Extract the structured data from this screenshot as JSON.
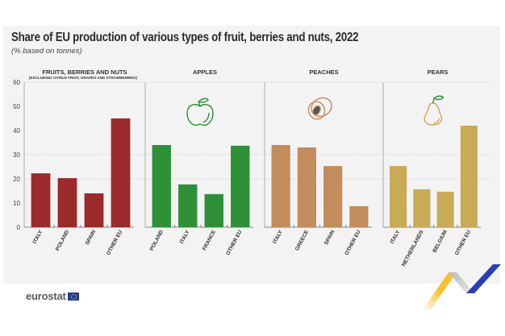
{
  "header": {
    "title": "Share of EU production of various types of fruit, berries and nuts, 2022",
    "subtitle": "(% based on tonnes)"
  },
  "footer": {
    "logo_text": "eurostat"
  },
  "chart_data": [
    {
      "type": "bar",
      "title": "FRUITS, BERRIES AND NUTS",
      "subtitle": "(EXCLUDING CITRUS FRUIT, GRAPES AND STRAWBERRIES)",
      "icon": "none",
      "color": "#9b2a2a",
      "categories": [
        "ITALY",
        "POLAND",
        "SPAIN",
        "OTHER EU"
      ],
      "values": [
        22.3,
        20.3,
        14.0,
        45.0
      ],
      "ylim": [
        0,
        60
      ],
      "yticks": [
        0,
        10,
        20,
        30,
        40,
        50,
        60
      ],
      "xlabel": "",
      "ylabel": ""
    },
    {
      "type": "bar",
      "title": "APPLES",
      "subtitle": "",
      "icon": "apple-icon",
      "color": "#2e9138",
      "categories": [
        "POLAND",
        "ITALY",
        "FRANCE",
        "OTHER EU"
      ],
      "values": [
        34.0,
        17.7,
        13.7,
        33.7
      ],
      "ylim": [
        0,
        60
      ]
    },
    {
      "type": "bar",
      "title": "PEACHES",
      "subtitle": "",
      "icon": "peach-icon",
      "color": "#c28c5c",
      "categories": [
        "ITALY",
        "GREECE",
        "SPAIN",
        "OTHER EU"
      ],
      "values": [
        34.0,
        33.0,
        25.3,
        8.7
      ],
      "ylim": [
        0,
        60
      ]
    },
    {
      "type": "bar",
      "title": "PEARS",
      "subtitle": "",
      "icon": "pear-icon",
      "color": "#c9aa55",
      "categories": [
        "ITALY",
        "NETHERLANDS",
        "BELGIUM",
        "OTHER EU"
      ],
      "values": [
        25.3,
        15.7,
        14.7,
        42.0
      ],
      "ylim": [
        0,
        60
      ]
    }
  ]
}
